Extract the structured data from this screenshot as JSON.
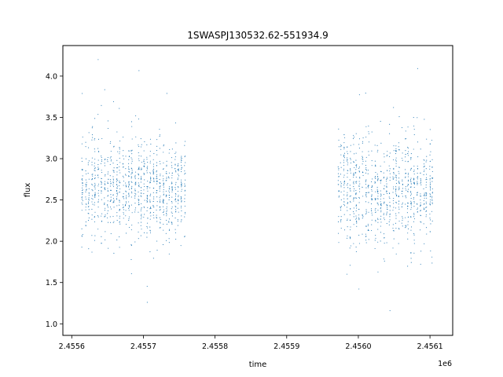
{
  "chart_data": {
    "type": "scatter",
    "title": "1SWASPJ130532.62-551934.9",
    "xlabel": "time",
    "ylabel": "flux",
    "x_offset_label": "1e6",
    "xlim": [
      2455587.6,
      2456131.7
    ],
    "ylim": [
      0.86,
      4.37
    ],
    "x_ticks": [
      2455600,
      2455700,
      2455800,
      2455900,
      2456000,
      2456100
    ],
    "x_tick_labels": [
      "2.4556",
      "2.4557",
      "2.4558",
      "2.4559",
      "2.4560",
      "2.4561"
    ],
    "y_ticks": [
      1.0,
      1.5,
      2.0,
      2.5,
      3.0,
      3.5,
      4.0
    ],
    "y_tick_labels": [
      "1.0",
      "1.5",
      "2.0",
      "2.5",
      "3.0",
      "3.5",
      "4.0"
    ],
    "grid": false,
    "marker_color": "#1f77b4",
    "marker": "point",
    "series": [
      {
        "segments": [
          {
            "x_range": [
              2455613.0,
              2455760.0
            ],
            "flux_center": 2.65,
            "flux_spread": 0.35,
            "nights": 34
          },
          {
            "x_range": [
              2455970.0,
              2456106.0
            ],
            "flux_center": 2.62,
            "flux_spread": 0.38,
            "nights": 32
          }
        ]
      }
    ]
  }
}
